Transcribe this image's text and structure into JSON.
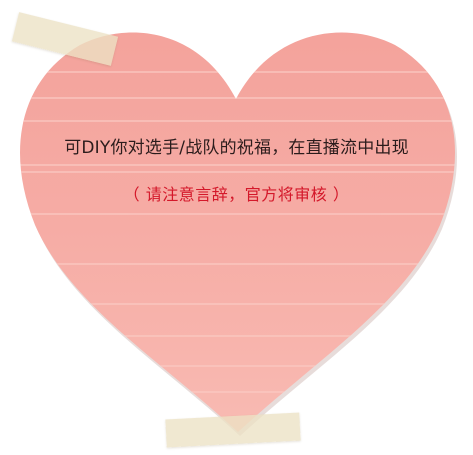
{
  "message": {
    "line1": "可DIY你对选手/战队的祝福，在直播流中出现",
    "line2": "（ 请注意言辞，官方将审核 ）"
  },
  "colors": {
    "heart_fill": "#f6aaa3",
    "heart_stripe": "#f9c1ba",
    "text_primary": "#2b1c1c",
    "text_warning": "#d4182a"
  },
  "icons": [
    "heart-icon",
    "tape"
  ]
}
